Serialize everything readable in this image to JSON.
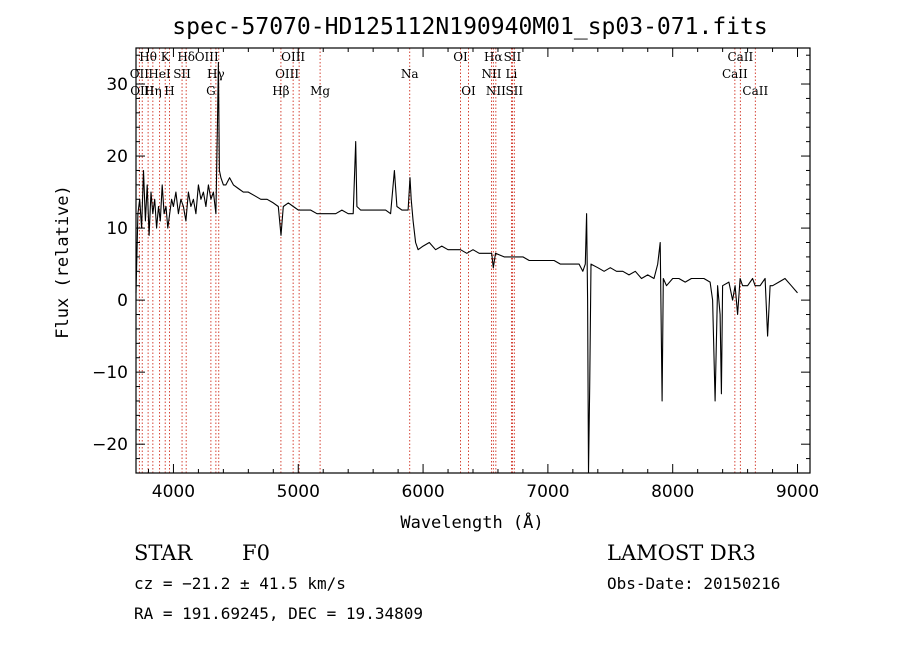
{
  "chart_data": {
    "type": "line",
    "title": "spec-57070-HD125112N190940M01_sp03-071.fits",
    "xlabel": "Wavelength (Å)",
    "ylabel": "Flux (relative)",
    "xlim": [
      3700,
      9100
    ],
    "ylim": [
      -24,
      35
    ],
    "x_ticks": [
      4000,
      5000,
      6000,
      7000,
      8000,
      9000
    ],
    "y_ticks": [
      -20,
      -10,
      0,
      10,
      20,
      30
    ],
    "grid": false,
    "series": [
      {
        "line_color": "#000000",
        "points": [
          [
            3700,
            1
          ],
          [
            3715,
            12
          ],
          [
            3730,
            14
          ],
          [
            3745,
            10
          ],
          [
            3760,
            18
          ],
          [
            3775,
            11
          ],
          [
            3790,
            16
          ],
          [
            3805,
            9
          ],
          [
            3820,
            15
          ],
          [
            3835,
            12
          ],
          [
            3850,
            14
          ],
          [
            3865,
            10
          ],
          [
            3880,
            13
          ],
          [
            3895,
            11
          ],
          [
            3910,
            16
          ],
          [
            3925,
            12
          ],
          [
            3940,
            13
          ],
          [
            3955,
            10
          ],
          [
            3970,
            12
          ],
          [
            3985,
            14
          ],
          [
            4000,
            13
          ],
          [
            4020,
            15
          ],
          [
            4040,
            12
          ],
          [
            4060,
            14
          ],
          [
            4080,
            13
          ],
          [
            4100,
            11
          ],
          [
            4120,
            15
          ],
          [
            4140,
            13
          ],
          [
            4160,
            14
          ],
          [
            4180,
            12
          ],
          [
            4200,
            16
          ],
          [
            4220,
            14
          ],
          [
            4240,
            15
          ],
          [
            4260,
            13
          ],
          [
            4280,
            16
          ],
          [
            4300,
            14
          ],
          [
            4320,
            15
          ],
          [
            4340,
            12
          ],
          [
            4352,
            24
          ],
          [
            4360,
            33
          ],
          [
            4368,
            18
          ],
          [
            4380,
            17
          ],
          [
            4400,
            16
          ],
          [
            4420,
            16
          ],
          [
            4450,
            17
          ],
          [
            4480,
            16
          ],
          [
            4520,
            15.5
          ],
          [
            4560,
            15
          ],
          [
            4600,
            15
          ],
          [
            4650,
            14.5
          ],
          [
            4700,
            14
          ],
          [
            4750,
            14
          ],
          [
            4800,
            13.5
          ],
          [
            4840,
            13
          ],
          [
            4862,
            9
          ],
          [
            4880,
            13
          ],
          [
            4920,
            13.5
          ],
          [
            4960,
            13
          ],
          [
            5000,
            12.5
          ],
          [
            5050,
            12.5
          ],
          [
            5100,
            12.5
          ],
          [
            5150,
            12
          ],
          [
            5200,
            12
          ],
          [
            5250,
            12
          ],
          [
            5300,
            12
          ],
          [
            5350,
            12.5
          ],
          [
            5400,
            12
          ],
          [
            5440,
            12
          ],
          [
            5460,
            22
          ],
          [
            5470,
            13
          ],
          [
            5500,
            12.5
          ],
          [
            5550,
            12.5
          ],
          [
            5600,
            12.5
          ],
          [
            5650,
            12.5
          ],
          [
            5700,
            12.5
          ],
          [
            5740,
            12
          ],
          [
            5770,
            18
          ],
          [
            5790,
            13
          ],
          [
            5830,
            12.5
          ],
          [
            5880,
            12.5
          ],
          [
            5895,
            17
          ],
          [
            5905,
            14
          ],
          [
            5920,
            11
          ],
          [
            5940,
            8
          ],
          [
            5960,
            7
          ],
          [
            6000,
            7.5
          ],
          [
            6050,
            8
          ],
          [
            6100,
            7
          ],
          [
            6150,
            7.5
          ],
          [
            6200,
            7
          ],
          [
            6250,
            7
          ],
          [
            6300,
            7
          ],
          [
            6350,
            6.5
          ],
          [
            6400,
            7
          ],
          [
            6450,
            6.5
          ],
          [
            6500,
            6.5
          ],
          [
            6550,
            6.5
          ],
          [
            6563,
            4.5
          ],
          [
            6580,
            6.5
          ],
          [
            6650,
            6
          ],
          [
            6700,
            6
          ],
          [
            6750,
            6
          ],
          [
            6800,
            6
          ],
          [
            6850,
            5.5
          ],
          [
            6900,
            5.5
          ],
          [
            6950,
            5.5
          ],
          [
            7000,
            5.5
          ],
          [
            7050,
            5.5
          ],
          [
            7100,
            5
          ],
          [
            7150,
            5
          ],
          [
            7200,
            5
          ],
          [
            7250,
            5
          ],
          [
            7280,
            4
          ],
          [
            7300,
            5
          ],
          [
            7310,
            12
          ],
          [
            7318,
            0
          ],
          [
            7325,
            -24
          ],
          [
            7335,
            -12
          ],
          [
            7345,
            5
          ],
          [
            7400,
            4.5
          ],
          [
            7450,
            4
          ],
          [
            7500,
            4.5
          ],
          [
            7550,
            4
          ],
          [
            7600,
            4
          ],
          [
            7650,
            3.5
          ],
          [
            7700,
            4
          ],
          [
            7750,
            3
          ],
          [
            7800,
            3.5
          ],
          [
            7850,
            3
          ],
          [
            7880,
            5
          ],
          [
            7900,
            8
          ],
          [
            7915,
            -14
          ],
          [
            7925,
            3
          ],
          [
            7950,
            2
          ],
          [
            8000,
            3
          ],
          [
            8050,
            3
          ],
          [
            8100,
            2.5
          ],
          [
            8150,
            3
          ],
          [
            8200,
            3
          ],
          [
            8250,
            3
          ],
          [
            8300,
            2.5
          ],
          [
            8320,
            0
          ],
          [
            8340,
            -14
          ],
          [
            8360,
            2
          ],
          [
            8380,
            -2
          ],
          [
            8390,
            -13
          ],
          [
            8400,
            2
          ],
          [
            8450,
            2.5
          ],
          [
            8480,
            0
          ],
          [
            8500,
            2
          ],
          [
            8520,
            -2
          ],
          [
            8540,
            3
          ],
          [
            8560,
            2
          ],
          [
            8600,
            2
          ],
          [
            8640,
            3
          ],
          [
            8660,
            2
          ],
          [
            8700,
            2
          ],
          [
            8740,
            3
          ],
          [
            8760,
            -5
          ],
          [
            8780,
            2
          ],
          [
            8800,
            2
          ],
          [
            8850,
            2.5
          ],
          [
            8900,
            3
          ],
          [
            8950,
            2
          ],
          [
            9000,
            1
          ]
        ]
      }
    ],
    "lines": [
      {
        "label": "Hθ",
        "x": 3797,
        "row": 0,
        "anchor": "middle"
      },
      {
        "label": "OII",
        "x": 3727,
        "row": 1,
        "anchor": "middle"
      },
      {
        "label": "OIII",
        "x": 3750,
        "row": 2,
        "anchor": "middle"
      },
      {
        "label": "K",
        "x": 3934,
        "row": 0,
        "anchor": "middle"
      },
      {
        "label": "HeI",
        "x": 3889,
        "row": 1,
        "anchor": "middle"
      },
      {
        "label": "Hη",
        "x": 3835,
        "row": 2,
        "anchor": "middle"
      },
      {
        "label": "SII",
        "x": 4069,
        "row": 1,
        "anchor": "middle"
      },
      {
        "label": "H",
        "x": 3968,
        "row": 2,
        "anchor": "middle"
      },
      {
        "label": "Hδ",
        "x": 4102,
        "row": 0,
        "anchor": "middle"
      },
      {
        "label": "OIII",
        "x": 4363,
        "row": 0,
        "anchor": "end"
      },
      {
        "label": "Hγ",
        "x": 4340,
        "row": 1,
        "anchor": "middle"
      },
      {
        "label": "G",
        "x": 4300,
        "row": 2,
        "anchor": "middle"
      },
      {
        "label": "Hβ",
        "x": 4861,
        "row": 2,
        "anchor": "middle"
      },
      {
        "label": "OIII",
        "x": 4959,
        "row": 0,
        "anchor": "middle"
      },
      {
        "label": "OIII",
        "x": 5007,
        "row": 1,
        "anchor": "end"
      },
      {
        "label": "Mg",
        "x": 5175,
        "row": 2,
        "anchor": "middle"
      },
      {
        "label": "Na",
        "x": 5893,
        "row": 1,
        "anchor": "middle"
      },
      {
        "label": "OI",
        "x": 6300,
        "row": 0,
        "anchor": "middle"
      },
      {
        "label": "OI",
        "x": 6364,
        "row": 2,
        "anchor": "middle"
      },
      {
        "label": "Hα",
        "x": 6563,
        "row": 0,
        "anchor": "middle"
      },
      {
        "label": "NII",
        "x": 6548,
        "row": 1,
        "anchor": "middle"
      },
      {
        "label": "NII",
        "x": 6583,
        "row": 2,
        "anchor": "middle"
      },
      {
        "label": "SII",
        "x": 6716,
        "row": 0,
        "anchor": "middle"
      },
      {
        "label": "Li",
        "x": 6708,
        "row": 1,
        "anchor": "middle"
      },
      {
        "label": "SII",
        "x": 6731,
        "row": 2,
        "anchor": "middle"
      },
      {
        "label": "CaII",
        "x": 8542,
        "row": 0,
        "anchor": "middle"
      },
      {
        "label": "CaII",
        "x": 8498,
        "row": 1,
        "anchor": "middle"
      },
      {
        "label": "CaII",
        "x": 8662,
        "row": 2,
        "anchor": "middle"
      }
    ],
    "line_color": "#d03020"
  },
  "info": {
    "class": "STAR",
    "subclass": "F0",
    "survey": "LAMOST DR3",
    "cz": "cz = −21.2 ± 41.5 km/s",
    "obs_date": "Obs-Date: 20150216",
    "coords": "RA = 191.69245, DEC =  19.34809"
  }
}
